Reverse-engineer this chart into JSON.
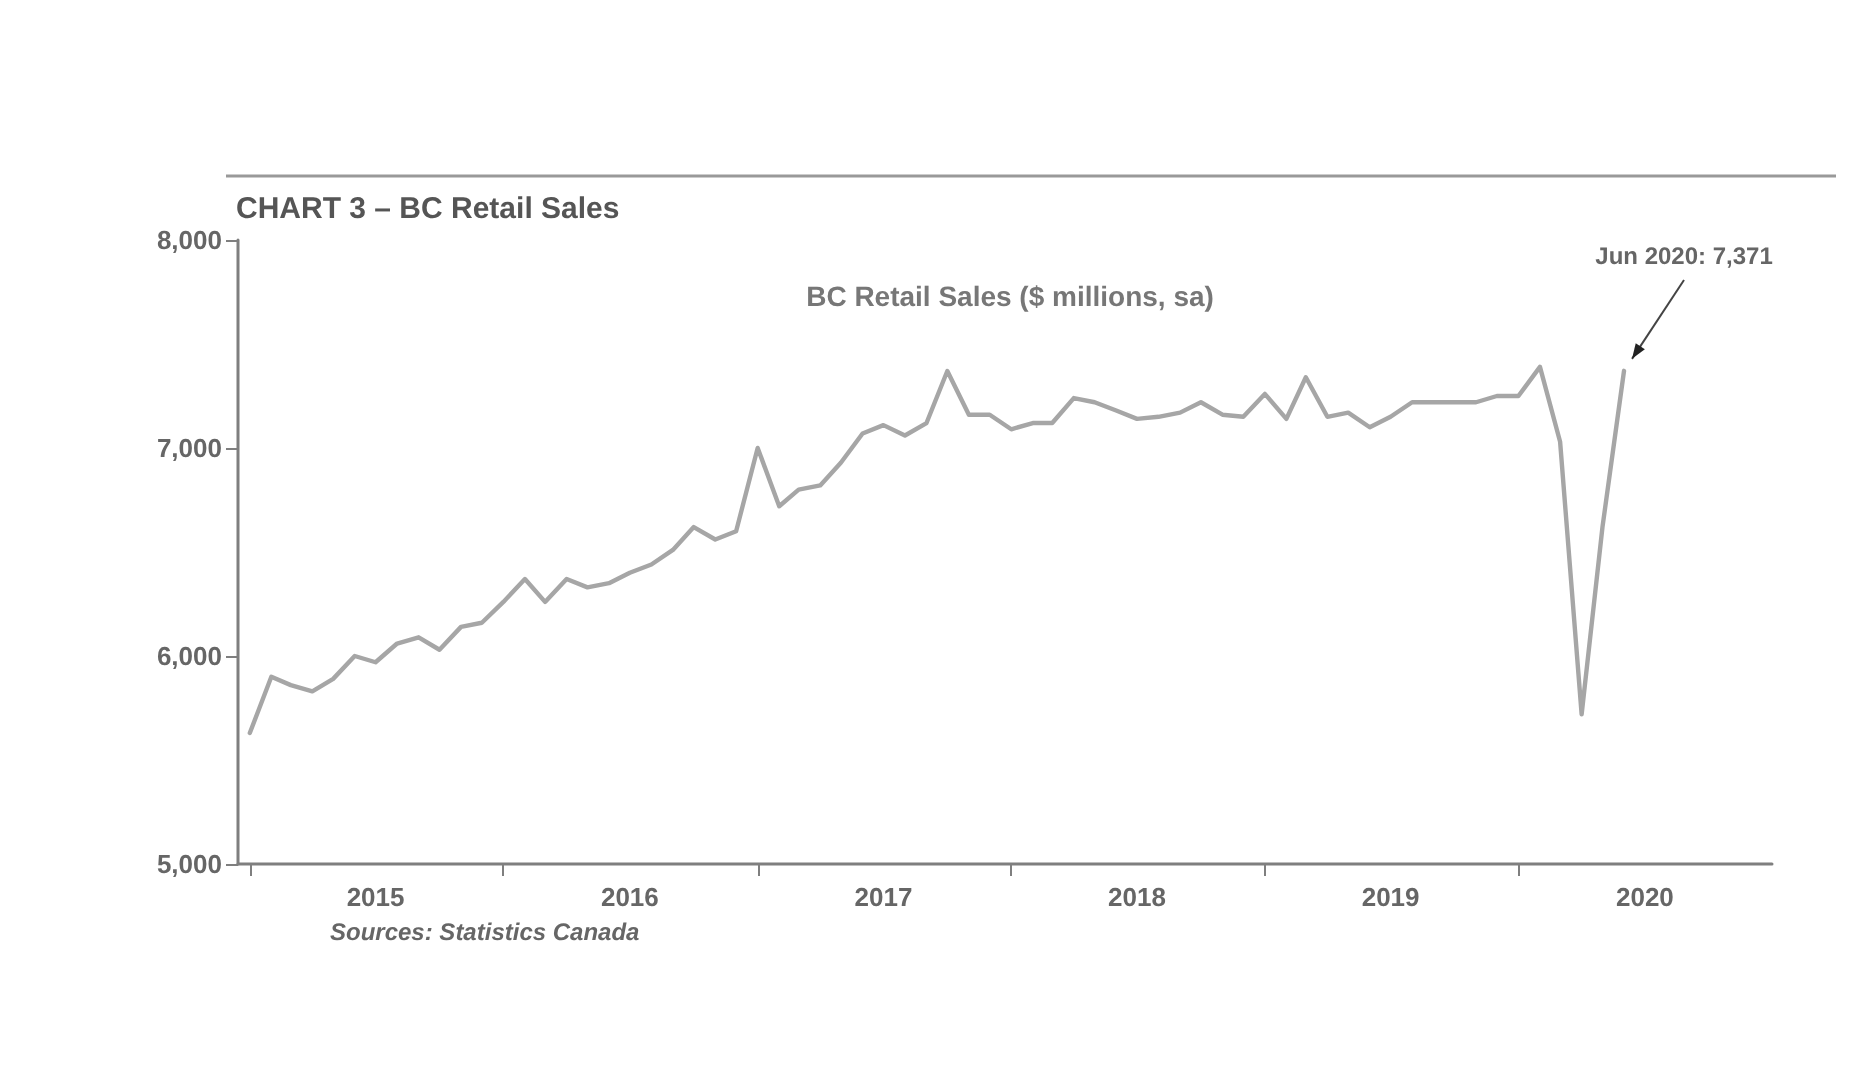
{
  "chart_data": {
    "type": "line",
    "title": "CHART 3 – BC Retail Sales",
    "subtitle": "BC Retail Sales ($ millions, sa)",
    "annotations": [
      {
        "text": "Jun 2020: 7,371",
        "x": "2020-06",
        "y": 7371
      },
      "Sources: Statistics Canada"
    ],
    "x": [
      "2015-01",
      "2015-02",
      "2015-03",
      "2015-04",
      "2015-05",
      "2015-06",
      "2015-07",
      "2015-08",
      "2015-09",
      "2015-10",
      "2015-11",
      "2015-12",
      "2016-01",
      "2016-02",
      "2016-03",
      "2016-04",
      "2016-05",
      "2016-06",
      "2016-07",
      "2016-08",
      "2016-09",
      "2016-10",
      "2016-11",
      "2016-12",
      "2017-01",
      "2017-02",
      "2017-03",
      "2017-04",
      "2017-05",
      "2017-06",
      "2017-07",
      "2017-08",
      "2017-09",
      "2017-10",
      "2017-11",
      "2017-12",
      "2018-01",
      "2018-02",
      "2018-03",
      "2018-04",
      "2018-05",
      "2018-06",
      "2018-07",
      "2018-08",
      "2018-09",
      "2018-10",
      "2018-11",
      "2018-12",
      "2019-01",
      "2019-02",
      "2019-03",
      "2019-04",
      "2019-05",
      "2019-06",
      "2019-07",
      "2019-08",
      "2019-09",
      "2019-10",
      "2019-11",
      "2019-12",
      "2020-01",
      "2020-02",
      "2020-03",
      "2020-04",
      "2020-05",
      "2020-06"
    ],
    "series": [
      {
        "color": "#a6a6a6",
        "values": [
          5630,
          5900,
          5860,
          5830,
          5890,
          6000,
          5970,
          6060,
          6090,
          6030,
          6140,
          6160,
          6260,
          6370,
          6260,
          6370,
          6330,
          6350,
          6400,
          6440,
          6510,
          6620,
          6560,
          6600,
          7000,
          6720,
          6800,
          6820,
          6930,
          7070,
          7110,
          7060,
          7120,
          7370,
          7160,
          7160,
          7090,
          7120,
          7120,
          7240,
          7220,
          7180,
          7140,
          7150,
          7170,
          7220,
          7160,
          7150,
          7260,
          7140,
          7340,
          7150,
          7170,
          7100,
          7150,
          7220,
          7220,
          7220,
          7220,
          7250,
          7250,
          7390,
          7030,
          5720,
          6620,
          7371
        ]
      }
    ],
    "xlim": [
      "2014-12-15",
      "2020-12-31"
    ],
    "xticks": [
      {
        "value": "2015-01",
        "label": null
      },
      {
        "value": "2016-01",
        "label": null
      },
      {
        "value": "2017-01",
        "label": null
      },
      {
        "value": "2018-01",
        "label": null
      },
      {
        "value": "2019-01",
        "label": null
      },
      {
        "value": "2020-01",
        "label": null
      },
      {
        "value": "2015-07",
        "label": "2015"
      },
      {
        "value": "2016-07",
        "label": "2016"
      },
      {
        "value": "2017-07",
        "label": "2017"
      },
      {
        "value": "2018-07",
        "label": "2018"
      },
      {
        "value": "2019-07",
        "label": "2019"
      },
      {
        "value": "2020-07",
        "label": "2020"
      }
    ],
    "ylim": [
      5000,
      8000
    ],
    "yticks": [
      {
        "value": 5000,
        "label": "5,000"
      },
      {
        "value": 6000,
        "label": "6,000"
      },
      {
        "value": 7000,
        "label": "7,000"
      },
      {
        "value": 8000,
        "label": "8,000"
      }
    ],
    "grid": false,
    "marker": "none",
    "line_style": "solid"
  }
}
